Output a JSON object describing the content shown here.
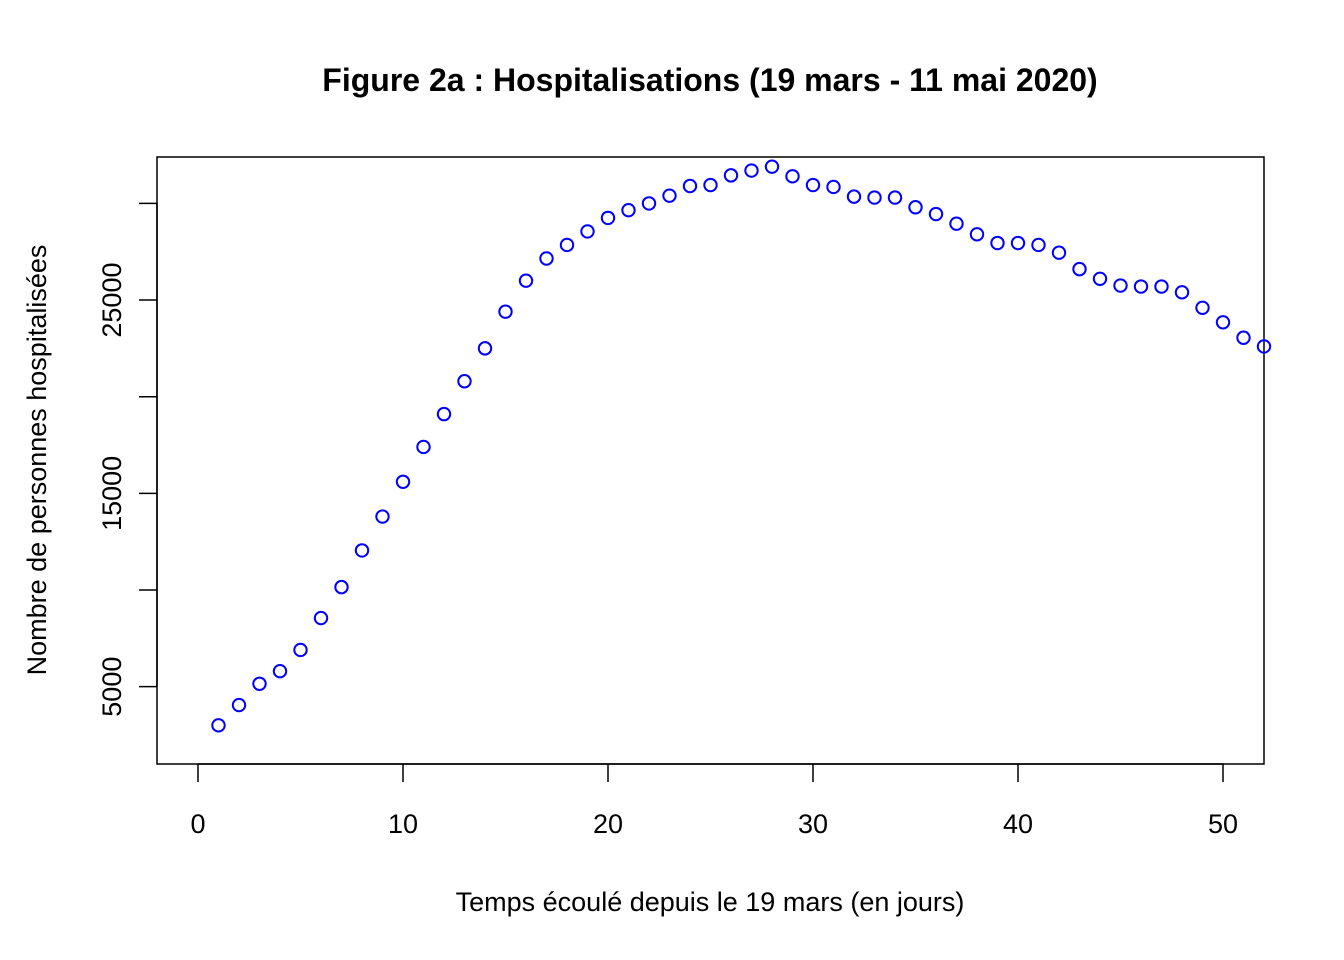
{
  "chart_data": {
    "type": "scatter",
    "title": "Figure 2a : Hospitalisations (19 mars - 11 mai 2020)",
    "xlabel": "Temps écoulé depuis le 19 mars (en jours)",
    "ylabel": "Nombre de personnes hospitalisées",
    "xlim": [
      -2,
      52
    ],
    "ylim": [
      1000,
      32400
    ],
    "x_ticks": [
      0,
      10,
      20,
      30,
      40,
      50
    ],
    "y_ticks": [
      5000,
      10000,
      15000,
      20000,
      25000,
      30000
    ],
    "y_tick_labels": [
      {
        "value": 5000,
        "label": "5000"
      },
      {
        "value": 10000,
        "label": ""
      },
      {
        "value": 15000,
        "label": "15000"
      },
      {
        "value": 20000,
        "label": ""
      },
      {
        "value": 25000,
        "label": "25000"
      },
      {
        "value": 30000,
        "label": ""
      }
    ],
    "grid": false,
    "marker": "open-circle",
    "point_color": "#0000FF",
    "series": [
      {
        "x": [
          1,
          2,
          3,
          4,
          5,
          6,
          7,
          8,
          9,
          10,
          11,
          12,
          13,
          14,
          15,
          16,
          17,
          18,
          19,
          20,
          21,
          22,
          23,
          24,
          25,
          26,
          27,
          28,
          29,
          30,
          31,
          32,
          33,
          34,
          35,
          36,
          37,
          38,
          39,
          40,
          41,
          42,
          43,
          44,
          45,
          46,
          47,
          48,
          49,
          50,
          51,
          52
        ],
        "values": [
          3000,
          4050,
          5150,
          5800,
          6900,
          8550,
          10150,
          12050,
          13800,
          15600,
          17400,
          19100,
          20800,
          22500,
          24400,
          26000,
          27150,
          27850,
          28550,
          29250,
          29650,
          30000,
          30400,
          30900,
          30950,
          31450,
          31700,
          31900,
          31400,
          30950,
          30850,
          30350,
          30300,
          30300,
          29800,
          29450,
          28950,
          28400,
          27950,
          27950,
          27850,
          27450,
          26600,
          26100,
          25750,
          25700,
          25700,
          25400,
          24600,
          23850,
          23050,
          22600
        ]
      }
    ]
  }
}
